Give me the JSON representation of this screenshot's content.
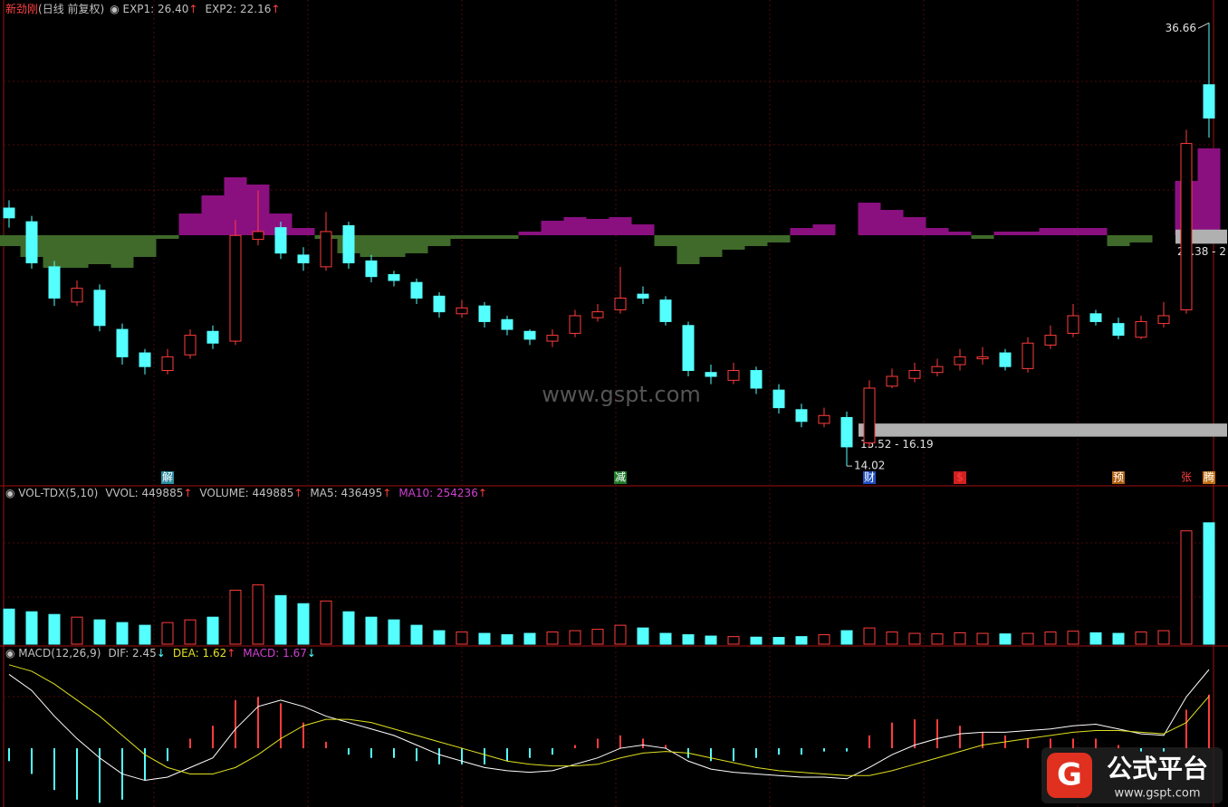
{
  "window": {
    "stock": "新劲刚",
    "period": "(日线 前复权)",
    "watermark": "www.gspt.com",
    "logo": "公式平台",
    "logo_url": "www.gspt.com"
  },
  "chart_data": [
    {
      "type": "candlestick",
      "indicator": "望柱MACD",
      "readouts": [
        {
          "label": "EXP1: 26.40",
          "arrow": "↑"
        },
        {
          "label": "EXP2: 22.16",
          "arrow": "↑"
        }
      ],
      "open": [
        27.2,
        26.5,
        24.2,
        22.4,
        23.0,
        21.0,
        19.8,
        18.9,
        19.7,
        20.9,
        20.4,
        25.6,
        26.2,
        24.8,
        24.2,
        26.3,
        24.5,
        23.8,
        23.4,
        22.7,
        21.8,
        22.2,
        21.5,
        20.9,
        20.4,
        20.8,
        21.6,
        22.0,
        22.8,
        22.5,
        21.2,
        18.8,
        18.4,
        18.9,
        17.9,
        16.9,
        16.2,
        16.5,
        15.2,
        18.1,
        18.5,
        18.8,
        19.2,
        19.5,
        19.8,
        19.0,
        20.2,
        20.8,
        21.8,
        21.3,
        20.6,
        21.3,
        22.0,
        33.5
      ],
      "close": [
        26.7,
        24.4,
        22.6,
        23.1,
        21.2,
        19.6,
        19.1,
        19.6,
        20.7,
        20.3,
        25.8,
        26.0,
        24.9,
        24.4,
        26.0,
        24.4,
        23.7,
        23.5,
        22.6,
        21.9,
        22.1,
        21.4,
        21.0,
        20.5,
        20.7,
        21.7,
        21.9,
        22.6,
        22.6,
        21.4,
        18.9,
        18.6,
        18.9,
        18.0,
        17.0,
        16.3,
        16.6,
        15.0,
        18.0,
        18.6,
        18.9,
        19.1,
        19.6,
        19.6,
        19.1,
        20.3,
        20.7,
        21.7,
        21.4,
        20.7,
        21.4,
        21.7,
        30.5,
        31.8
      ],
      "high": [
        27.6,
        26.8,
        24.5,
        23.5,
        23.3,
        21.3,
        20.0,
        20.0,
        21.0,
        21.2,
        26.6,
        28.1,
        26.5,
        25.2,
        27.0,
        26.5,
        24.8,
        24.0,
        23.6,
        22.9,
        22.5,
        22.4,
        21.7,
        21.0,
        21.0,
        22.0,
        22.3,
        24.2,
        23.2,
        22.7,
        21.4,
        19.2,
        19.3,
        19.1,
        18.2,
        17.2,
        17.0,
        16.8,
        18.4,
        19.0,
        19.3,
        19.5,
        20.0,
        20.1,
        20.0,
        20.6,
        21.2,
        22.3,
        22.0,
        21.6,
        21.7,
        22.4,
        31.2,
        36.66
      ],
      "low": [
        26.2,
        24.1,
        22.2,
        22.2,
        20.9,
        19.2,
        18.7,
        18.7,
        19.5,
        20.0,
        20.2,
        25.3,
        24.6,
        24.0,
        24.0,
        24.1,
        23.4,
        23.2,
        22.3,
        21.6,
        21.6,
        21.1,
        20.7,
        20.2,
        20.1,
        20.6,
        21.4,
        21.8,
        22.3,
        21.2,
        18.6,
        18.2,
        18.2,
        17.7,
        16.7,
        16.0,
        16.0,
        14.02,
        15.0,
        18.0,
        18.3,
        18.6,
        18.9,
        19.2,
        18.9,
        18.8,
        20.0,
        20.6,
        21.2,
        20.5,
        20.5,
        21.1,
        21.8,
        30.8
      ],
      "overlay_values": [
        -0.3,
        -0.6,
        -0.9,
        -0.9,
        -0.8,
        -0.9,
        -0.6,
        -0.1,
        0.6,
        1.1,
        1.6,
        1.4,
        0.6,
        0.2,
        -0.1,
        -0.5,
        -0.6,
        -0.6,
        -0.5,
        -0.3,
        -0.1,
        -0.1,
        -0.1,
        0.1,
        0.4,
        0.5,
        0.45,
        0.5,
        0.3,
        -0.3,
        -0.8,
        -0.6,
        -0.4,
        -0.3,
        -0.2,
        0.2,
        0.3,
        0.0,
        0.9,
        0.7,
        0.5,
        0.2,
        0.1,
        -0.1,
        0.1,
        0.1,
        0.2,
        0.2,
        0.2,
        -0.3,
        -0.2,
        0.0,
        1.5,
        2.4
      ],
      "overlay_ylim": [
        -6.875,
        6.375
      ],
      "ylim": [
        13.1,
        37.6
      ],
      "up_color": "#ff3c3c",
      "down_color": "#54ffff",
      "annotations": [
        {
          "index": 53,
          "label": "36.66",
          "value": 36.66
        },
        {
          "index": 37,
          "label": "14.02",
          "value": 14.02
        }
      ],
      "zones": [
        {
          "start": 38,
          "low": 15.52,
          "high": 16.19,
          "label": "15.52 - 16.19"
        },
        {
          "start": 52,
          "low": 25.38,
          "high": 26.1,
          "label": "25.38 - 2"
        }
      ],
      "events": [
        {
          "index": 7,
          "label": "解",
          "color": "#2a8aa0"
        },
        {
          "index": 27,
          "label": "减",
          "color": "#1f7a2a"
        },
        {
          "index": 38,
          "label": "财",
          "color": "#2050c0"
        },
        {
          "index": 42,
          "label": "$",
          "color": "#d02020"
        },
        {
          "index": 49,
          "label": "预",
          "color": "#b06010"
        },
        {
          "index": 52,
          "label": "张",
          "color": "#000000"
        },
        {
          "index": 53,
          "label": "腾",
          "color": "#c07010"
        }
      ]
    },
    {
      "type": "volume",
      "readouts": [
        {
          "label": "VOL-TDX(5,10)",
          "arrow": ""
        },
        {
          "label": "VVOL: 449885",
          "arrow": "↑"
        },
        {
          "label": "VOLUME: 449885",
          "arrow": "↑"
        },
        {
          "label": "MA5: 436495",
          "arrow": "↑"
        },
        {
          "label": "MA10: 254236",
          "arrow": "↑"
        }
      ],
      "values": [
        130000,
        120000,
        110000,
        100000,
        90000,
        80000,
        70000,
        80000,
        90000,
        100000,
        200000,
        220000,
        180000,
        150000,
        160000,
        120000,
        100000,
        90000,
        70000,
        50000,
        45000,
        40000,
        35000,
        40000,
        45000,
        50000,
        55000,
        70000,
        60000,
        40000,
        35000,
        30000,
        28000,
        26000,
        25000,
        28000,
        35000,
        50000,
        60000,
        45000,
        40000,
        38000,
        42000,
        40000,
        38000,
        40000,
        45000,
        48000,
        42000,
        40000,
        45000,
        50000,
        420000,
        449885
      ],
      "ylim": [
        0,
        560000
      ]
    },
    {
      "type": "macd",
      "readouts": [
        {
          "label": "MACD(12,26,9)",
          "arrow": ""
        },
        {
          "label": "DIF: 2.45",
          "arrow": "↓"
        },
        {
          "label": "DEA: 1.62",
          "arrow": "↑"
        },
        {
          "label": "MACD: 1.67",
          "arrow": "↓"
        }
      ],
      "dif": [
        2.3,
        1.8,
        1.0,
        0.3,
        -0.3,
        -0.8,
        -1.0,
        -0.9,
        -0.6,
        -0.3,
        0.6,
        1.3,
        1.5,
        1.3,
        1.0,
        0.8,
        0.6,
        0.4,
        0.1,
        -0.2,
        -0.4,
        -0.6,
        -0.7,
        -0.75,
        -0.7,
        -0.5,
        -0.3,
        0.0,
        0.1,
        0.0,
        -0.4,
        -0.65,
        -0.75,
        -0.8,
        -0.85,
        -0.9,
        -0.9,
        -0.95,
        -0.6,
        -0.2,
        0.1,
        0.3,
        0.45,
        0.5,
        0.5,
        0.55,
        0.6,
        0.7,
        0.75,
        0.6,
        0.45,
        0.4,
        1.6,
        2.45
      ],
      "dea": [
        2.6,
        2.4,
        2.0,
        1.5,
        1.0,
        0.4,
        -0.2,
        -0.6,
        -0.8,
        -0.8,
        -0.6,
        -0.2,
        0.3,
        0.7,
        0.9,
        0.9,
        0.8,
        0.6,
        0.4,
        0.2,
        0.0,
        -0.2,
        -0.4,
        -0.5,
        -0.55,
        -0.55,
        -0.5,
        -0.3,
        -0.15,
        -0.1,
        -0.15,
        -0.3,
        -0.45,
        -0.6,
        -0.7,
        -0.75,
        -0.8,
        -0.85,
        -0.85,
        -0.7,
        -0.5,
        -0.3,
        -0.1,
        0.1,
        0.2,
        0.3,
        0.4,
        0.5,
        0.55,
        0.55,
        0.5,
        0.45,
        0.8,
        1.62
      ],
      "hist": [
        -0.4,
        -0.8,
        -1.3,
        -1.6,
        -1.7,
        -1.6,
        -1.0,
        -0.4,
        0.3,
        0.7,
        1.5,
        1.6,
        1.4,
        0.8,
        0.2,
        -0.2,
        -0.3,
        -0.3,
        -0.4,
        -0.5,
        -0.5,
        -0.5,
        -0.4,
        -0.3,
        -0.2,
        0.1,
        0.3,
        0.4,
        0.3,
        0.1,
        -0.3,
        -0.4,
        -0.4,
        -0.3,
        -0.2,
        -0.2,
        -0.1,
        -0.1,
        0.4,
        0.8,
        0.9,
        0.9,
        0.7,
        0.5,
        0.4,
        0.3,
        0.3,
        0.3,
        0.3,
        0.1,
        -0.1,
        -0.1,
        1.2,
        1.67
      ],
      "ylim": [
        -1.83,
        3.13
      ]
    }
  ]
}
